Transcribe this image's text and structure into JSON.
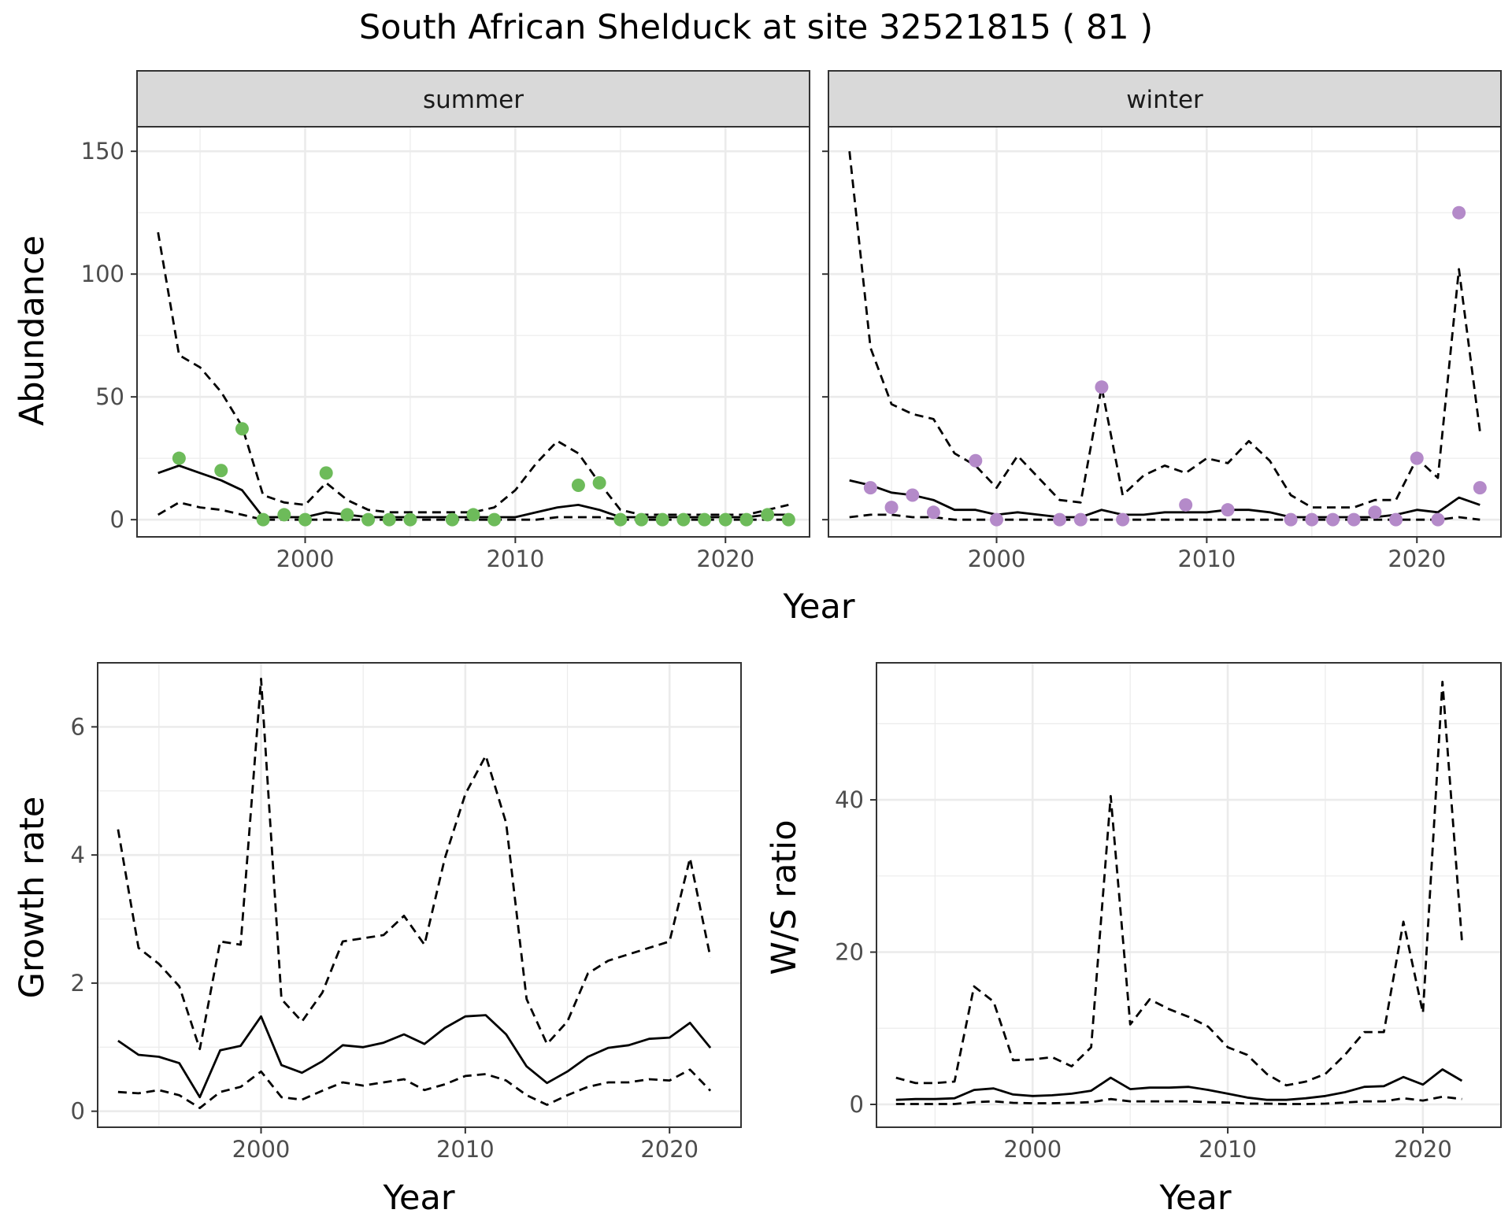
{
  "page": {
    "title": "South African Shelduck at site 32521815 ( 81 )"
  },
  "colors": {
    "summer_points": "#6dbb5a",
    "winter_points": "#b48ac9",
    "line": "#000000",
    "grid": "#ebebeb",
    "strip_bg": "#d9d9d9",
    "strip_border": "#333333"
  },
  "chart_data": [
    {
      "type": "line",
      "panel": "summer",
      "facet_label": "summer",
      "xlabel": "Year",
      "ylabel": "Abundance",
      "xlim": [
        1992,
        2024
      ],
      "ylim": [
        -7,
        160
      ],
      "x_ticks": [
        2000,
        2010,
        2020
      ],
      "x_tick_labels": [
        "2000",
        "2010",
        "2020"
      ],
      "y_ticks": [
        0,
        50,
        100,
        150
      ],
      "y_tick_labels": [
        "0",
        "50",
        "100",
        "150"
      ],
      "grid": true,
      "series": [
        {
          "style": "solid",
          "x": [
            1993,
            1994,
            1995,
            1996,
            1997,
            1998,
            1999,
            2000,
            2001,
            2002,
            2003,
            2004,
            2005,
            2006,
            2007,
            2008,
            2009,
            2010,
            2011,
            2012,
            2013,
            2014,
            2015,
            2016,
            2017,
            2018,
            2019,
            2020,
            2021,
            2022,
            2023
          ],
          "y": [
            19,
            22,
            19,
            16,
            12,
            1,
            1,
            1,
            3,
            2,
            1,
            1,
            1,
            1,
            1,
            1,
            1,
            1,
            3,
            5,
            6,
            4,
            1,
            1,
            1,
            1,
            1,
            1,
            1,
            2,
            2
          ]
        },
        {
          "style": "dashed",
          "x": [
            1993,
            1994,
            1995,
            1996,
            1997,
            1998,
            1999,
            2000,
            2001,
            2002,
            2003,
            2004,
            2005,
            2006,
            2007,
            2008,
            2009,
            2010,
            2011,
            2012,
            2013,
            2014,
            2015,
            2016,
            2017,
            2018,
            2019,
            2020,
            2021,
            2022,
            2023
          ],
          "y": [
            117,
            67,
            62,
            52,
            38,
            10,
            7,
            6,
            15,
            8,
            4,
            3,
            3,
            3,
            3,
            3,
            5,
            12,
            23,
            32,
            27,
            15,
            4,
            2,
            2,
            2,
            2,
            2,
            2,
            4,
            6
          ]
        },
        {
          "style": "dashed",
          "x": [
            1993,
            1994,
            1995,
            1996,
            1997,
            1998,
            1999,
            2000,
            2001,
            2002,
            2003,
            2004,
            2005,
            2006,
            2007,
            2008,
            2009,
            2010,
            2011,
            2012,
            2013,
            2014,
            2015,
            2016,
            2017,
            2018,
            2019,
            2020,
            2021,
            2022,
            2023
          ],
          "y": [
            2,
            7,
            5,
            4,
            2,
            0,
            0,
            0,
            0,
            0,
            0,
            0,
            0,
            0,
            0,
            0,
            0,
            0,
            0,
            1,
            1,
            1,
            0,
            0,
            0,
            0,
            0,
            0,
            0,
            0,
            0
          ]
        }
      ],
      "points": {
        "x": [
          1994,
          1996,
          1997,
          1998,
          1999,
          2000,
          2001,
          2002,
          2003,
          2004,
          2005,
          2007,
          2008,
          2009,
          2013,
          2014,
          2015,
          2016,
          2017,
          2018,
          2019,
          2020,
          2021,
          2022,
          2023
        ],
        "y": [
          25,
          20,
          37,
          0,
          2,
          0,
          19,
          2,
          0,
          0,
          0,
          0,
          2,
          0,
          14,
          15,
          0,
          0,
          0,
          0,
          0,
          0,
          0,
          2,
          0
        ]
      }
    },
    {
      "type": "line",
      "panel": "winter",
      "facet_label": "winter",
      "xlabel": "Year",
      "ylabel": "Abundance",
      "xlim": [
        1992,
        2024
      ],
      "ylim": [
        -7,
        160
      ],
      "x_ticks": [
        2000,
        2010,
        2020
      ],
      "x_tick_labels": [
        "2000",
        "2010",
        "2020"
      ],
      "y_ticks": [
        0,
        50,
        100,
        150
      ],
      "grid": true,
      "series": [
        {
          "style": "solid",
          "x": [
            1993,
            1994,
            1995,
            1996,
            1997,
            1998,
            1999,
            2000,
            2001,
            2002,
            2003,
            2004,
            2005,
            2006,
            2007,
            2008,
            2009,
            2010,
            2011,
            2012,
            2013,
            2014,
            2015,
            2016,
            2017,
            2018,
            2019,
            2020,
            2021,
            2022,
            2023
          ],
          "y": [
            16,
            14,
            11,
            10,
            8,
            4,
            4,
            2,
            3,
            2,
            1,
            1,
            4,
            2,
            2,
            3,
            3,
            3,
            4,
            4,
            3,
            1,
            1,
            1,
            1,
            1,
            2,
            4,
            3,
            9,
            6
          ]
        },
        {
          "style": "dashed",
          "x": [
            1993,
            1994,
            1995,
            1996,
            1997,
            1998,
            1999,
            2000,
            2001,
            2002,
            2003,
            2004,
            2005,
            2006,
            2007,
            2008,
            2009,
            2010,
            2011,
            2012,
            2013,
            2014,
            2015,
            2016,
            2017,
            2018,
            2019,
            2020,
            2021,
            2022,
            2023
          ],
          "y": [
            150,
            70,
            47,
            43,
            41,
            27,
            22,
            13,
            26,
            17,
            8,
            7,
            54,
            10,
            18,
            22,
            19,
            25,
            23,
            32,
            24,
            10,
            5,
            5,
            5,
            8,
            8,
            25,
            17,
            102,
            36
          ]
        },
        {
          "style": "dashed",
          "x": [
            1993,
            1994,
            1995,
            1996,
            1997,
            1998,
            1999,
            2000,
            2001,
            2002,
            2003,
            2004,
            2005,
            2006,
            2007,
            2008,
            2009,
            2010,
            2011,
            2012,
            2013,
            2014,
            2015,
            2016,
            2017,
            2018,
            2019,
            2020,
            2021,
            2022,
            2023
          ],
          "y": [
            1,
            2,
            2,
            1,
            1,
            0,
            0,
            0,
            0,
            0,
            0,
            0,
            0,
            0,
            0,
            0,
            0,
            0,
            0,
            0,
            0,
            0,
            0,
            0,
            0,
            0,
            0,
            0,
            0,
            1,
            0
          ]
        }
      ],
      "points": {
        "x": [
          1994,
          1995,
          1996,
          1997,
          1999,
          2000,
          2003,
          2004,
          2005,
          2006,
          2009,
          2011,
          2014,
          2015,
          2016,
          2017,
          2018,
          2019,
          2020,
          2021,
          2022,
          2023
        ],
        "y": [
          13,
          5,
          10,
          3,
          24,
          0,
          0,
          0,
          54,
          0,
          6,
          4,
          0,
          0,
          0,
          0,
          3,
          0,
          25,
          0,
          125,
          13
        ]
      }
    },
    {
      "type": "line",
      "panel": "growth",
      "xlabel": "Year",
      "ylabel": "Growth rate",
      "xlim": [
        1992,
        2023.5
      ],
      "ylim": [
        -0.25,
        7.0
      ],
      "x_ticks": [
        2000,
        2010,
        2020
      ],
      "x_tick_labels": [
        "2000",
        "2010",
        "2020"
      ],
      "y_ticks": [
        0,
        2,
        4,
        6
      ],
      "y_tick_labels": [
        "0",
        "2",
        "4",
        "6"
      ],
      "grid": true,
      "series": [
        {
          "style": "solid",
          "x": [
            1993,
            1994,
            1995,
            1996,
            1997,
            1998,
            1999,
            2000,
            2001,
            2002,
            2003,
            2004,
            2005,
            2006,
            2007,
            2008,
            2009,
            2010,
            2011,
            2012,
            2013,
            2014,
            2015,
            2016,
            2017,
            2018,
            2019,
            2020,
            2021,
            2022
          ],
          "y": [
            1.1,
            0.88,
            0.85,
            0.75,
            0.22,
            0.95,
            1.02,
            1.48,
            0.72,
            0.6,
            0.78,
            1.03,
            1.0,
            1.07,
            1.2,
            1.05,
            1.3,
            1.48,
            1.5,
            1.2,
            0.7,
            0.44,
            0.62,
            0.85,
            0.99,
            1.03,
            1.13,
            1.15,
            1.38,
            0.99
          ]
        },
        {
          "style": "dashed",
          "x": [
            1993,
            1994,
            1995,
            1996,
            1997,
            1998,
            1999,
            2000,
            2001,
            2002,
            2003,
            2004,
            2005,
            2006,
            2007,
            2008,
            2009,
            2010,
            2011,
            2012,
            2013,
            2014,
            2015,
            2016,
            2017,
            2018,
            2019,
            2020,
            2021,
            2022
          ],
          "y": [
            4.4,
            2.55,
            2.3,
            1.95,
            0.97,
            2.65,
            2.6,
            6.75,
            1.75,
            1.4,
            1.85,
            2.65,
            2.7,
            2.75,
            3.05,
            2.6,
            3.95,
            4.95,
            5.55,
            4.5,
            1.75,
            1.05,
            1.4,
            2.15,
            2.35,
            2.45,
            2.55,
            2.65,
            3.95,
            2.4
          ]
        },
        {
          "style": "dashed",
          "x": [
            1993,
            1994,
            1995,
            1996,
            1997,
            1998,
            1999,
            2000,
            2001,
            2002,
            2003,
            2004,
            2005,
            2006,
            2007,
            2008,
            2009,
            2010,
            2011,
            2012,
            2013,
            2014,
            2015,
            2016,
            2017,
            2018,
            2019,
            2020,
            2021,
            2022
          ],
          "y": [
            0.3,
            0.28,
            0.33,
            0.25,
            0.05,
            0.3,
            0.38,
            0.62,
            0.22,
            0.18,
            0.32,
            0.45,
            0.4,
            0.45,
            0.5,
            0.33,
            0.42,
            0.55,
            0.58,
            0.48,
            0.25,
            0.1,
            0.25,
            0.38,
            0.45,
            0.45,
            0.5,
            0.48,
            0.65,
            0.32
          ]
        }
      ]
    },
    {
      "type": "line",
      "panel": "ratio",
      "xlabel": "Year",
      "ylabel": "W/S ratio",
      "xlim": [
        1992,
        2024
      ],
      "ylim": [
        -3,
        58
      ],
      "x_ticks": [
        2000,
        2010,
        2020
      ],
      "x_tick_labels": [
        "2000",
        "2010",
        "2020"
      ],
      "y_ticks": [
        0,
        20,
        40
      ],
      "y_tick_labels": [
        "0",
        "20",
        "40"
      ],
      "grid": true,
      "series": [
        {
          "style": "solid",
          "x": [
            1993,
            1994,
            1995,
            1996,
            1997,
            1998,
            1999,
            2000,
            2001,
            2002,
            2003,
            2004,
            2005,
            2006,
            2007,
            2008,
            2009,
            2010,
            2011,
            2012,
            2013,
            2014,
            2015,
            2016,
            2017,
            2018,
            2019,
            2020,
            2021,
            2022
          ],
          "y": [
            0.6,
            0.7,
            0.7,
            0.8,
            1.9,
            2.1,
            1.3,
            1.1,
            1.2,
            1.4,
            1.8,
            3.5,
            2.0,
            2.2,
            2.2,
            2.3,
            1.9,
            1.4,
            0.9,
            0.6,
            0.6,
            0.8,
            1.1,
            1.6,
            2.3,
            2.4,
            3.6,
            2.6,
            4.6,
            3.1
          ]
        },
        {
          "style": "dashed",
          "x": [
            1993,
            1994,
            1995,
            1996,
            1997,
            1998,
            1999,
            2000,
            2001,
            2002,
            2003,
            2004,
            2005,
            2006,
            2007,
            2008,
            2009,
            2010,
            2011,
            2012,
            2013,
            2014,
            2015,
            2016,
            2017,
            2018,
            2019,
            2020,
            2021,
            2022
          ],
          "y": [
            3.5,
            2.8,
            2.8,
            3.0,
            15.5,
            13.5,
            5.8,
            5.9,
            6.2,
            5.0,
            7.5,
            40.5,
            10.5,
            13.8,
            12.5,
            11.5,
            10.2,
            7.5,
            6.5,
            4.0,
            2.5,
            3.0,
            4.0,
            6.5,
            9.5,
            9.5,
            24.0,
            12.0,
            55.5,
            21.5
          ]
        },
        {
          "style": "dashed",
          "x": [
            1993,
            1994,
            1995,
            1996,
            1997,
            1998,
            1999,
            2000,
            2001,
            2002,
            2003,
            2004,
            2005,
            2006,
            2007,
            2008,
            2009,
            2010,
            2011,
            2012,
            2013,
            2014,
            2015,
            2016,
            2017,
            2018,
            2019,
            2020,
            2021,
            2022
          ],
          "y": [
            0.05,
            0.05,
            0.05,
            0.05,
            0.3,
            0.4,
            0.2,
            0.15,
            0.15,
            0.2,
            0.3,
            0.7,
            0.4,
            0.4,
            0.4,
            0.4,
            0.3,
            0.25,
            0.1,
            0.1,
            0.05,
            0.05,
            0.1,
            0.25,
            0.4,
            0.4,
            0.8,
            0.5,
            1.0,
            0.7
          ]
        }
      ]
    }
  ]
}
